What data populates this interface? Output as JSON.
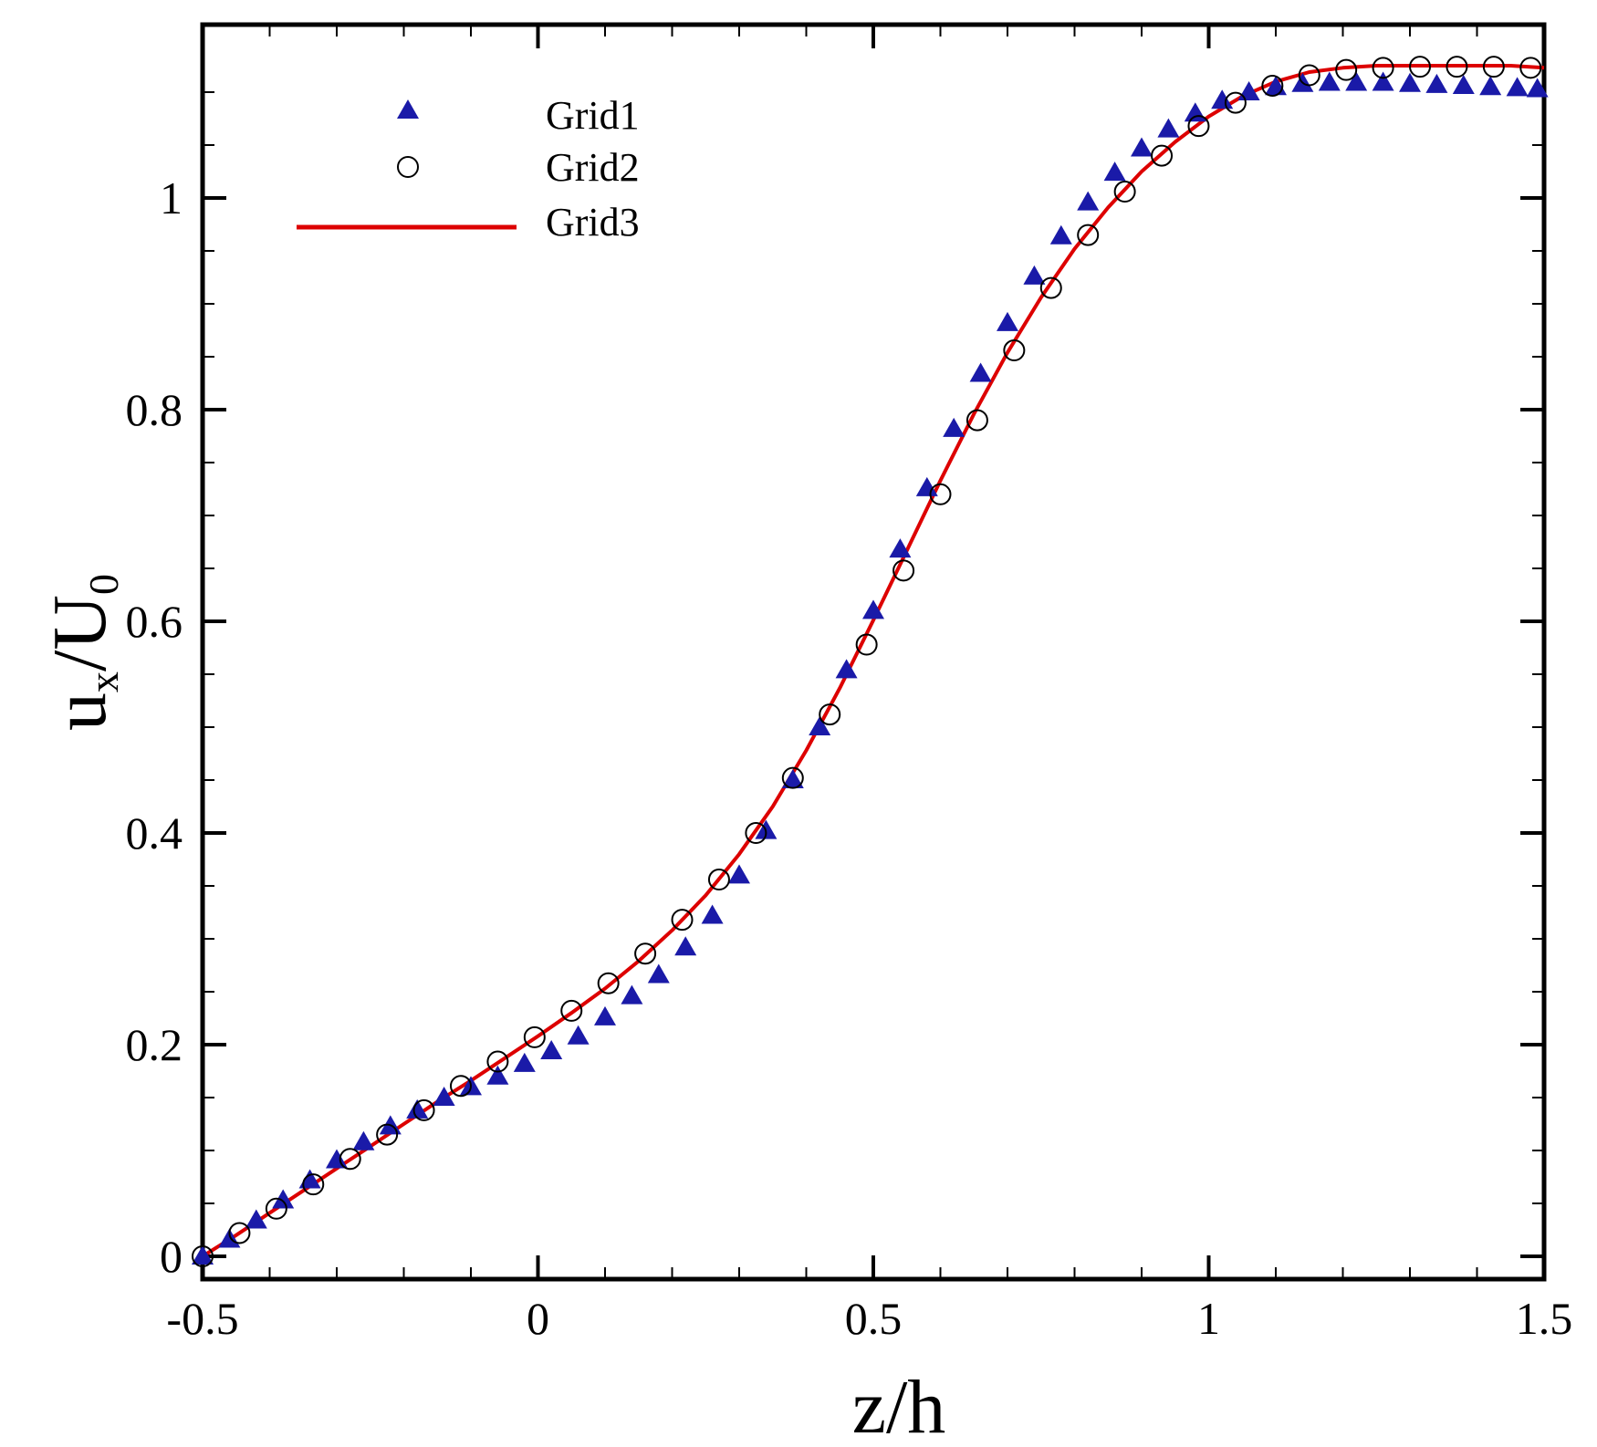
{
  "chart_data": {
    "type": "line",
    "title": "",
    "xlabel": "z/h",
    "ylabel": "u_x/U_0",
    "ylabel_parts": {
      "main": "u",
      "sub": "x",
      "mid": "/U",
      "sub2": "0"
    },
    "xlim": [
      -0.5,
      1.5
    ],
    "ylim": [
      0,
      1.12
    ],
    "xticks": [
      -0.5,
      0,
      0.5,
      1,
      1.5
    ],
    "xtick_labels": [
      "-0.5",
      "0",
      "0.5",
      "1",
      "1.5"
    ],
    "yticks": [
      0,
      0.2,
      0.4,
      0.6,
      0.8,
      1
    ],
    "ytick_labels": [
      "0",
      "0.2",
      "0.4",
      "0.6",
      "0.8",
      "1"
    ],
    "x_minor_step": 0.1,
    "y_minor_step": 0.05,
    "grid": false,
    "legend_position": "top-left",
    "series": [
      {
        "name": "Grid1",
        "style": "triangle-markers",
        "color": "#1a1aa8",
        "x": [
          -0.5,
          -0.46,
          -0.42,
          -0.38,
          -0.34,
          -0.3,
          -0.26,
          -0.22,
          -0.18,
          -0.14,
          -0.1,
          -0.06,
          -0.02,
          0.02,
          0.06,
          0.1,
          0.14,
          0.18,
          0.22,
          0.26,
          0.3,
          0.34,
          0.38,
          0.42,
          0.46,
          0.5,
          0.54,
          0.58,
          0.62,
          0.66,
          0.7,
          0.74,
          0.78,
          0.82,
          0.86,
          0.9,
          0.94,
          0.98,
          1.02,
          1.06,
          1.1,
          1.14,
          1.18,
          1.22,
          1.26,
          1.3,
          1.34,
          1.38,
          1.42,
          1.46,
          1.49
        ],
        "y": [
          0.0,
          0.016,
          0.034,
          0.053,
          0.072,
          0.091,
          0.108,
          0.123,
          0.138,
          0.15,
          0.16,
          0.17,
          0.182,
          0.194,
          0.208,
          0.226,
          0.246,
          0.266,
          0.292,
          0.322,
          0.36,
          0.402,
          0.45,
          0.5,
          0.554,
          0.61,
          0.668,
          0.726,
          0.782,
          0.834,
          0.882,
          0.926,
          0.964,
          0.996,
          1.024,
          1.047,
          1.065,
          1.08,
          1.092,
          1.1,
          1.105,
          1.108,
          1.109,
          1.109,
          1.109,
          1.108,
          1.107,
          1.106,
          1.105,
          1.104,
          1.103
        ]
      },
      {
        "name": "Grid2",
        "style": "circle-markers",
        "color": "#000000",
        "x": [
          -0.5,
          -0.445,
          -0.39,
          -0.335,
          -0.28,
          -0.225,
          -0.17,
          -0.115,
          -0.06,
          -0.005,
          0.05,
          0.105,
          0.16,
          0.215,
          0.27,
          0.325,
          0.38,
          0.435,
          0.49,
          0.545,
          0.6,
          0.655,
          0.71,
          0.765,
          0.82,
          0.875,
          0.93,
          0.985,
          1.04,
          1.095,
          1.15,
          1.205,
          1.26,
          1.315,
          1.37,
          1.425,
          1.48
        ],
        "y": [
          0.0,
          0.022,
          0.045,
          0.068,
          0.092,
          0.115,
          0.138,
          0.161,
          0.184,
          0.207,
          0.232,
          0.258,
          0.286,
          0.318,
          0.356,
          0.4,
          0.452,
          0.512,
          0.578,
          0.648,
          0.72,
          0.79,
          0.856,
          0.915,
          0.965,
          1.006,
          1.04,
          1.068,
          1.09,
          1.106,
          1.116,
          1.121,
          1.123,
          1.124,
          1.124,
          1.124,
          1.123
        ]
      },
      {
        "name": "Grid3",
        "style": "line",
        "color": "#dd0000",
        "x": [
          -0.5,
          -0.45,
          -0.4,
          -0.35,
          -0.3,
          -0.25,
          -0.2,
          -0.15,
          -0.1,
          -0.05,
          0.0,
          0.05,
          0.1,
          0.15,
          0.2,
          0.25,
          0.3,
          0.35,
          0.4,
          0.45,
          0.5,
          0.55,
          0.6,
          0.65,
          0.7,
          0.75,
          0.8,
          0.85,
          0.9,
          0.95,
          1.0,
          1.05,
          1.1,
          1.15,
          1.2,
          1.25,
          1.3,
          1.35,
          1.4,
          1.45,
          1.5
        ],
        "y": [
          0.0,
          0.02,
          0.041,
          0.062,
          0.083,
          0.104,
          0.125,
          0.146,
          0.166,
          0.187,
          0.208,
          0.23,
          0.253,
          0.279,
          0.308,
          0.341,
          0.38,
          0.425,
          0.478,
          0.537,
          0.601,
          0.667,
          0.733,
          0.796,
          0.854,
          0.906,
          0.952,
          0.991,
          1.025,
          1.053,
          1.077,
          1.096,
          1.11,
          1.119,
          1.123,
          1.125,
          1.125,
          1.125,
          1.125,
          1.125,
          1.123
        ]
      }
    ]
  }
}
